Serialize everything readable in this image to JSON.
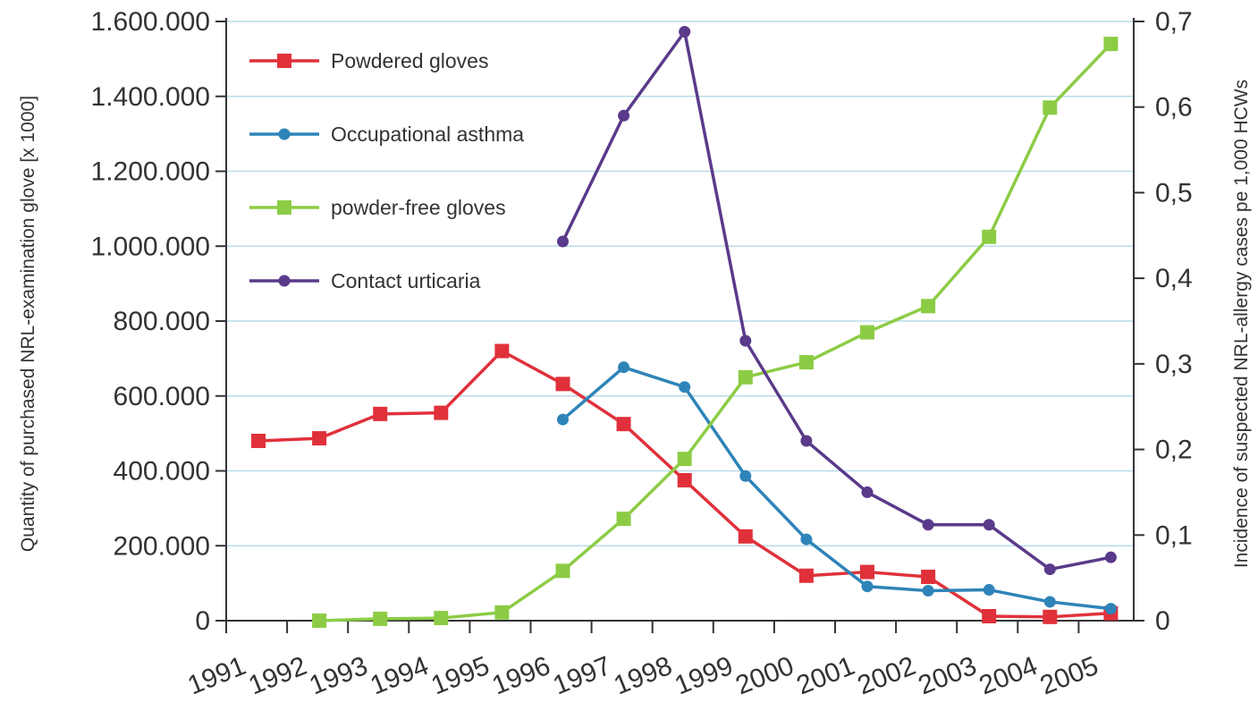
{
  "chart_data": {
    "type": "line",
    "x_ticks": [
      "1991",
      "1992",
      "1993",
      "1994",
      "1995",
      "1996",
      "1997",
      "1998",
      "1999",
      "2000",
      "2001",
      "2002",
      "2003",
      "2004",
      "2005"
    ],
    "x_points": [
      "1991",
      "1992",
      "1993",
      "1994",
      "1995",
      "1996",
      "1997",
      "1998",
      "1999",
      "2000",
      "2001",
      "2002",
      "2003",
      "2004",
      "2005"
    ],
    "y_left": {
      "label": "Quantity of purchased NRL-examination glove [x 1000]",
      "ticks": [
        "0",
        "200.000",
        "400.000",
        "600.000",
        "800.000",
        "1.000.000",
        "1.200.000",
        "1.400.000",
        "1.600.000"
      ],
      "range": [
        0,
        1600000
      ]
    },
    "y_right": {
      "label": "Incidence of suspected NRL-allergy cases pe 1,000 HCWs",
      "ticks": [
        "0",
        "0,1",
        "0,2",
        "0,3",
        "0,4",
        "0,5",
        "0,6",
        "0,7"
      ],
      "range": [
        0,
        0.7
      ]
    },
    "grid": true,
    "legend_position": "top-left",
    "series": [
      {
        "name": "Powdered gloves",
        "axis": "left",
        "marker": "square",
        "color": "#e0313b",
        "values": [
          480000,
          487000,
          552000,
          555000,
          720000,
          632000,
          525000,
          375000,
          225000,
          120000,
          130000,
          117000,
          12000,
          10000,
          20000
        ]
      },
      {
        "name": "Occupational asthma",
        "axis": "right",
        "marker": "circle",
        "color": "#2e84b8",
        "values": [
          null,
          null,
          null,
          null,
          null,
          0.235,
          0.296,
          0.273,
          0.169,
          0.095,
          0.04,
          0.035,
          0.036,
          0.022,
          0.014
        ]
      },
      {
        "name": "powder-free gloves",
        "axis": "left",
        "marker": "square",
        "color": "#8ccc45",
        "values": [
          null,
          0,
          5000,
          7000,
          22000,
          133000,
          272000,
          432000,
          650000,
          690000,
          770000,
          840000,
          1025000,
          1370000,
          1540000
        ]
      },
      {
        "name": "Contact urticaria",
        "axis": "right",
        "marker": "circle",
        "color": "#5a3a8a",
        "values": [
          null,
          null,
          null,
          null,
          null,
          0.443,
          0.59,
          0.688,
          0.327,
          0.21,
          0.15,
          0.112,
          0.112,
          0.06,
          0.074
        ]
      }
    ]
  }
}
